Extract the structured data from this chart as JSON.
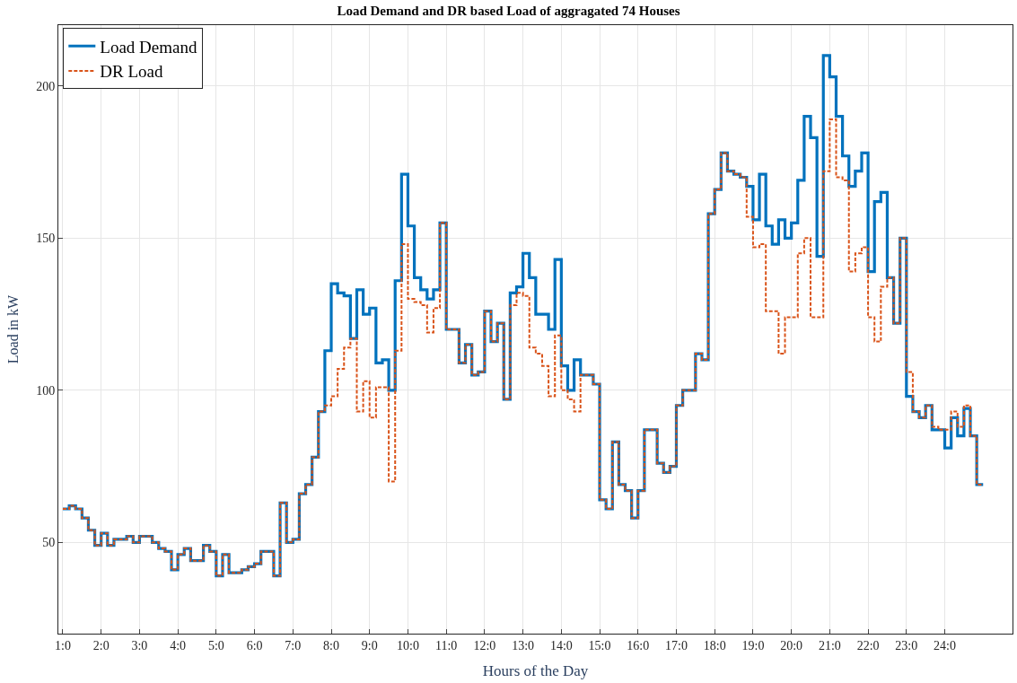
{
  "chart_data": {
    "type": "step",
    "title": "Load Demand and DR based Load of aggragated 74 Houses",
    "xlabel": "Hours of the Day",
    "ylabel": "Load in kW",
    "categories": [
      "1:0",
      null,
      null,
      null,
      null,
      null,
      "2:0",
      null,
      null,
      null,
      null,
      null,
      "3:0",
      null,
      null,
      null,
      null,
      null,
      "4:0",
      null,
      null,
      null,
      null,
      null,
      "5:0",
      null,
      null,
      null,
      null,
      null,
      "6:0",
      null,
      null,
      null,
      null,
      null,
      "7:0",
      null,
      null,
      null,
      null,
      null,
      "8:0",
      null,
      null,
      null,
      null,
      null,
      "9:0",
      null,
      null,
      null,
      null,
      null,
      "10:0",
      null,
      null,
      null,
      null,
      null,
      "11:0",
      null,
      null,
      null,
      null,
      null,
      "12:0",
      null,
      null,
      null,
      null,
      null,
      "13:0",
      null,
      null,
      null,
      null,
      null,
      "14:0",
      null,
      null,
      null,
      null,
      null,
      "15:0",
      null,
      null,
      null,
      null,
      null,
      "16:0",
      null,
      null,
      null,
      null,
      null,
      "17:0",
      null,
      null,
      null,
      null,
      null,
      "18:0",
      null,
      null,
      null,
      null,
      null,
      "19:0",
      null,
      null,
      null,
      null,
      null,
      "20:0",
      null,
      null,
      null,
      null,
      null,
      "21:0",
      null,
      null,
      null,
      null,
      null,
      "22:0",
      null,
      null,
      null,
      null,
      null,
      "23:0",
      null,
      null,
      null,
      null,
      null,
      "24:0",
      null,
      null,
      null,
      null,
      null,
      null
    ],
    "series": [
      {
        "name": "Load Demand",
        "color": "#0072bd",
        "line_style": "solid",
        "values": [
          61,
          62,
          61,
          58,
          54,
          49,
          53,
          49,
          51,
          51,
          52,
          50,
          52,
          52,
          50,
          48,
          47,
          41,
          46,
          48,
          44,
          44,
          49,
          47,
          39,
          46,
          40,
          40,
          41,
          42,
          43,
          47,
          47,
          39,
          63,
          50,
          51,
          66,
          69,
          78,
          93,
          113,
          135,
          132,
          131,
          117,
          133,
          125,
          127,
          109,
          110,
          100,
          136,
          171,
          154,
          137,
          133,
          130,
          133,
          155,
          120,
          120,
          109,
          115,
          105,
          106,
          126,
          116,
          122,
          97,
          132,
          134,
          145,
          137,
          125,
          125,
          120,
          143,
          108,
          100,
          110,
          105,
          105,
          102,
          64,
          61,
          83,
          69,
          67,
          58,
          67,
          87,
          87,
          76,
          73,
          75,
          95,
          100,
          100,
          112,
          110,
          158,
          166,
          178,
          172,
          171,
          170,
          167,
          156,
          171,
          154,
          148,
          156,
          150,
          155,
          169,
          190,
          183,
          144,
          210,
          203,
          190,
          177,
          167,
          172,
          178,
          139,
          162,
          165,
          137,
          122,
          150,
          98,
          93,
          91,
          95,
          87,
          87,
          81,
          91,
          85,
          94,
          85,
          69,
          69
        ]
      },
      {
        "name": "DR Load",
        "color": "#d95319",
        "line_style": "dashed",
        "values": [
          61,
          62,
          61,
          58,
          54,
          49,
          53,
          49,
          51,
          51,
          52,
          50,
          52,
          52,
          50,
          48,
          47,
          41,
          46,
          48,
          44,
          44,
          49,
          47,
          39,
          46,
          40,
          40,
          41,
          42,
          43,
          47,
          47,
          39,
          63,
          50,
          51,
          66,
          69,
          78,
          93,
          95,
          98,
          107,
          114,
          117,
          93,
          103,
          91,
          101,
          101,
          70,
          113,
          148,
          130,
          129,
          128,
          119,
          127,
          155,
          120,
          120,
          109,
          115,
          105,
          106,
          126,
          116,
          122,
          97,
          128,
          132,
          131,
          114,
          112,
          108,
          98,
          118,
          100,
          97,
          93,
          105,
          105,
          102,
          64,
          61,
          83,
          69,
          67,
          58,
          67,
          87,
          87,
          76,
          73,
          75,
          95,
          100,
          100,
          112,
          110,
          158,
          166,
          178,
          172,
          171,
          170,
          157,
          147,
          148,
          126,
          126,
          112,
          124,
          124,
          145,
          150,
          124,
          124,
          172,
          189,
          170,
          169,
          139,
          145,
          147,
          124,
          116,
          134,
          137,
          122,
          150,
          106,
          93,
          91,
          95,
          88,
          87,
          87,
          93,
          88,
          95,
          85,
          69,
          69
        ]
      }
    ],
    "ylim": [
      20,
      220
    ],
    "yticks": [
      50,
      100,
      150,
      200
    ],
    "grid": true,
    "legend": "top left",
    "marker": "none"
  }
}
